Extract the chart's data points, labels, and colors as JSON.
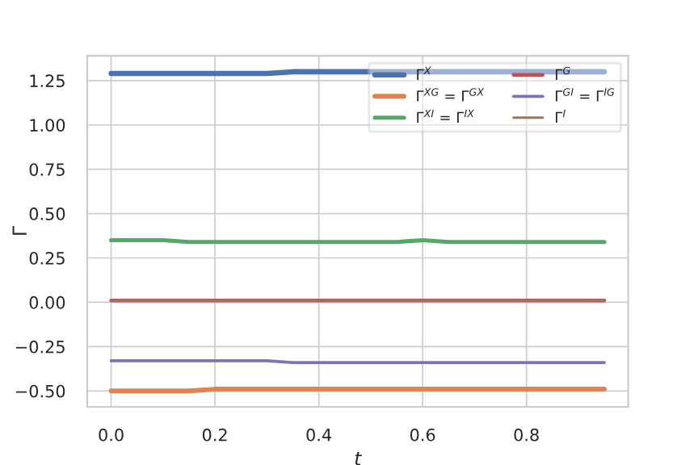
{
  "chart_data": {
    "type": "line",
    "xlabel": "t",
    "ylabel": "Γ",
    "x": [
      0,
      0.05,
      0.1,
      0.15,
      0.2,
      0.25,
      0.3,
      0.35,
      0.4,
      0.45,
      0.5,
      0.55,
      0.6,
      0.65,
      0.7,
      0.75,
      0.8,
      0.85,
      0.9,
      0.95
    ],
    "series": [
      {
        "name": "Γ$^{X}$",
        "color": "#4c72b0",
        "values": [
          1.29,
          1.29,
          1.29,
          1.29,
          1.29,
          1.29,
          1.29,
          1.3,
          1.3,
          1.3,
          1.3,
          1.3,
          1.3,
          1.3,
          1.3,
          1.3,
          1.3,
          1.3,
          1.3,
          1.3
        ]
      },
      {
        "name": "Γ$^{XG}$ = Γ$^{GX}$",
        "color": "#dd8452",
        "values": [
          -0.5,
          -0.5,
          -0.5,
          -0.5,
          -0.49,
          -0.49,
          -0.49,
          -0.49,
          -0.49,
          -0.49,
          -0.49,
          -0.49,
          -0.49,
          -0.49,
          -0.49,
          -0.49,
          -0.49,
          -0.49,
          -0.49,
          -0.49
        ]
      },
      {
        "name": "Γ$^{XI}$ = Γ$^{IX}$",
        "color": "#55a868",
        "values": [
          0.35,
          0.35,
          0.35,
          0.34,
          0.34,
          0.34,
          0.34,
          0.34,
          0.34,
          0.34,
          0.34,
          0.34,
          0.35,
          0.34,
          0.34,
          0.34,
          0.34,
          0.34,
          0.34,
          0.34
        ]
      },
      {
        "name": "Γ$^{G}$",
        "color": "#c44e52",
        "values": [
          0.01,
          0.01,
          0.01,
          0.01,
          0.01,
          0.01,
          0.01,
          0.01,
          0.01,
          0.01,
          0.01,
          0.01,
          0.01,
          0.01,
          0.01,
          0.01,
          0.01,
          0.01,
          0.01,
          0.01
        ]
      },
      {
        "name": "Γ$^{GI}$ = Γ$^{IG}$",
        "color": "#8172b3",
        "values": [
          -0.33,
          -0.33,
          -0.33,
          -0.33,
          -0.33,
          -0.33,
          -0.33,
          -0.34,
          -0.34,
          -0.34,
          -0.34,
          -0.34,
          -0.34,
          -0.34,
          -0.34,
          -0.34,
          -0.34,
          -0.34,
          -0.34,
          -0.34
        ]
      },
      {
        "name": "Γ$^{I}$",
        "color": "#937860",
        "values": [
          0.01,
          0.01,
          0.01,
          0.01,
          0.01,
          0.01,
          0.01,
          0.01,
          0.01,
          0.01,
          0.01,
          0.01,
          0.01,
          0.01,
          0.01,
          0.01,
          0.01,
          0.01,
          0.01,
          0.01
        ]
      }
    ],
    "xlim": [
      -0.046,
      0.996
    ],
    "ylim": [
      -0.59,
      1.39
    ],
    "xticks": [
      {
        "value": 0,
        "label": "0.0"
      },
      0.2,
      0.4,
      0.6,
      0.8
    ],
    "yticks": [
      {
        "value": -0.5,
        "label": "−0.50"
      },
      {
        "value": -0.25,
        "label": "−0.25"
      },
      {
        "value": 0,
        "label": "0.00"
      },
      0.25,
      {
        "value": 0.5,
        "label": "0.50"
      },
      0.75,
      {
        "value": 1,
        "label": "1.00"
      },
      1.25
    ],
    "grid": true,
    "legend": "top right"
  }
}
